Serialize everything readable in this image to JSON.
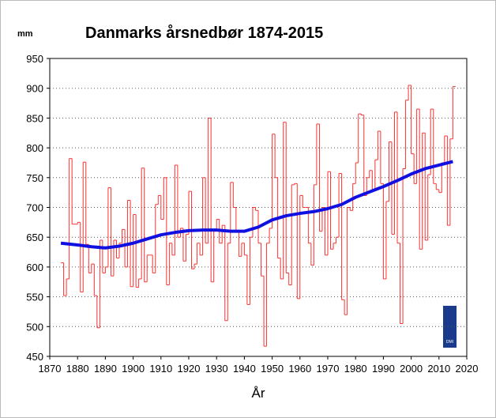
{
  "chart_data": {
    "type": "step-line",
    "title": "Danmarks årsnedbør 1874-2015",
    "y_unit": "mm",
    "x_label": "År",
    "logo_text": "DMI",
    "xlim": [
      1870,
      2020
    ],
    "xticks": [
      1870,
      1880,
      1890,
      1900,
      1910,
      1920,
      1930,
      1940,
      1950,
      1960,
      1970,
      1980,
      1990,
      2000,
      2010,
      2020
    ],
    "ylim": [
      450,
      950
    ],
    "yticks": [
      450,
      500,
      550,
      600,
      650,
      700,
      750,
      800,
      850,
      900,
      950
    ],
    "grid": true,
    "x": [
      1874,
      1875,
      1876,
      1877,
      1878,
      1879,
      1880,
      1881,
      1882,
      1883,
      1884,
      1885,
      1886,
      1887,
      1888,
      1889,
      1890,
      1891,
      1892,
      1893,
      1894,
      1895,
      1896,
      1897,
      1898,
      1899,
      1900,
      1901,
      1902,
      1903,
      1904,
      1905,
      1906,
      1907,
      1908,
      1909,
      1910,
      1911,
      1912,
      1913,
      1914,
      1915,
      1916,
      1917,
      1918,
      1919,
      1920,
      1921,
      1922,
      1923,
      1924,
      1925,
      1926,
      1927,
      1928,
      1929,
      1930,
      1931,
      1932,
      1933,
      1934,
      1935,
      1936,
      1937,
      1938,
      1939,
      1940,
      1941,
      1942,
      1943,
      1944,
      1945,
      1946,
      1947,
      1948,
      1949,
      1950,
      1951,
      1952,
      1953,
      1954,
      1955,
      1956,
      1957,
      1958,
      1959,
      1960,
      1961,
      1962,
      1963,
      1964,
      1965,
      1966,
      1967,
      1968,
      1969,
      1970,
      1971,
      1972,
      1973,
      1974,
      1975,
      1976,
      1977,
      1978,
      1979,
      1980,
      1981,
      1982,
      1983,
      1984,
      1985,
      1986,
      1987,
      1988,
      1989,
      1990,
      1991,
      1992,
      1993,
      1994,
      1995,
      1996,
      1997,
      1998,
      1999,
      2000,
      2001,
      2002,
      2003,
      2004,
      2005,
      2006,
      2007,
      2008,
      2009,
      2010,
      2011,
      2012,
      2013,
      2014,
      2015
    ],
    "series": [
      {
        "color": "#ff3030",
        "values": [
          607,
          552,
          580,
          782,
          672,
          672,
          675,
          558,
          776,
          638,
          590,
          605,
          552,
          498,
          645,
          590,
          600,
          733,
          585,
          645,
          615,
          640,
          663,
          600,
          712,
          567,
          688,
          566,
          580,
          766,
          575,
          620,
          620,
          590,
          705,
          720,
          680,
          750,
          570,
          640,
          620,
          771,
          650,
          665,
          610,
          655,
          727,
          597,
          605,
          640,
          620,
          750,
          640,
          850,
          575,
          660,
          680,
          640,
          670,
          510,
          640,
          742,
          700,
          660,
          618,
          640,
          620,
          537,
          650,
          700,
          695,
          640,
          585,
          467,
          640,
          665,
          823,
          750,
          615,
          580,
          843,
          590,
          570,
          738,
          740,
          547,
          720,
          700,
          700,
          640,
          603,
          738,
          840,
          660,
          700,
          620,
          760,
          630,
          640,
          650,
          757,
          545,
          520,
          700,
          695,
          740,
          775,
          857,
          855,
          720,
          750,
          762,
          730,
          780,
          828,
          740,
          580,
          710,
          810,
          655,
          860,
          640,
          505,
          765,
          880,
          905,
          790,
          740,
          865,
          630,
          825,
          645,
          755,
          865,
          740,
          730,
          725,
          775,
          820,
          670,
          815,
          903
        ]
      },
      {
        "color": "#1010e0",
        "x": [
          1874,
          1880,
          1885,
          1890,
          1895,
          1900,
          1905,
          1910,
          1915,
          1920,
          1925,
          1930,
          1935,
          1940,
          1945,
          1950,
          1955,
          1960,
          1965,
          1970,
          1975,
          1980,
          1985,
          1990,
          1995,
          2000,
          2005,
          2010,
          2015
        ],
        "values": [
          640,
          637,
          634,
          632,
          635,
          640,
          647,
          654,
          658,
          661,
          662,
          662,
          660,
          660,
          667,
          679,
          686,
          690,
          693,
          698,
          705,
          717,
          726,
          735,
          745,
          756,
          765,
          771,
          777
        ]
      }
    ]
  }
}
